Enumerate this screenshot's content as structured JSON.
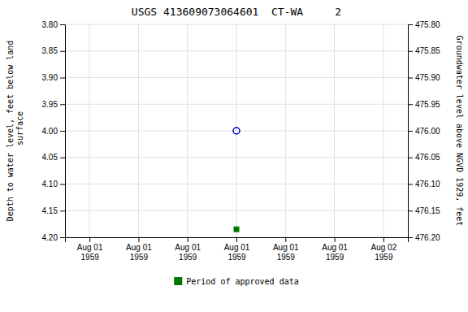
{
  "chart_data": {
    "type": "scatter",
    "title": "USGS 413609073064601  CT-WA     2",
    "y_label": "Depth to water level, feet below land\n surface",
    "y2_label": "Groundwater level above NGVD 1929, feet",
    "categories": [
      "Aug 01\n1959",
      "Aug 01\n1959",
      "Aug 01\n1959",
      "Aug 01\n1959",
      "Aug 01\n1959",
      "Aug 01\n1959",
      "Aug 02\n1959"
    ],
    "series": [
      {
        "color": "#0000cc",
        "marker": "circle",
        "values": [
          null,
          null,
          null,
          4.0,
          null,
          null,
          null
        ]
      },
      {
        "name": "Period of approved data",
        "color": "#007700",
        "marker": "square",
        "values": [
          null,
          null,
          null,
          4.185,
          null,
          null,
          null
        ]
      }
    ],
    "ylim": [
      4.2,
      3.8
    ],
    "yticks": [
      {
        "value": 3.8,
        "label": "3.80"
      },
      {
        "value": 3.85,
        "label": "3.85"
      },
      {
        "value": 3.9,
        "label": "3.90"
      },
      {
        "value": 3.95,
        "label": "3.95"
      },
      {
        "value": 4.0,
        "label": "4.00"
      },
      {
        "value": 4.05,
        "label": "4.05"
      },
      {
        "value": 4.1,
        "label": "4.10"
      },
      {
        "value": 4.15,
        "label": "4.15"
      },
      {
        "value": 4.2,
        "label": "4.20"
      }
    ],
    "y2lim": [
      476.2,
      475.8
    ],
    "y2ticks": [
      {
        "value": 476.2,
        "label": "476.20"
      },
      {
        "value": 476.15,
        "label": "476.15"
      },
      {
        "value": 476.1,
        "label": "476.10"
      },
      {
        "value": 476.05,
        "label": "476.05"
      },
      {
        "value": 476.0,
        "label": "476.00"
      },
      {
        "value": 475.95,
        "label": "475.95"
      },
      {
        "value": 475.9,
        "label": "475.90"
      },
      {
        "value": 475.85,
        "label": "475.85"
      },
      {
        "value": 475.8,
        "label": "475.80"
      }
    ],
    "grid": true,
    "legend": "bottom"
  }
}
